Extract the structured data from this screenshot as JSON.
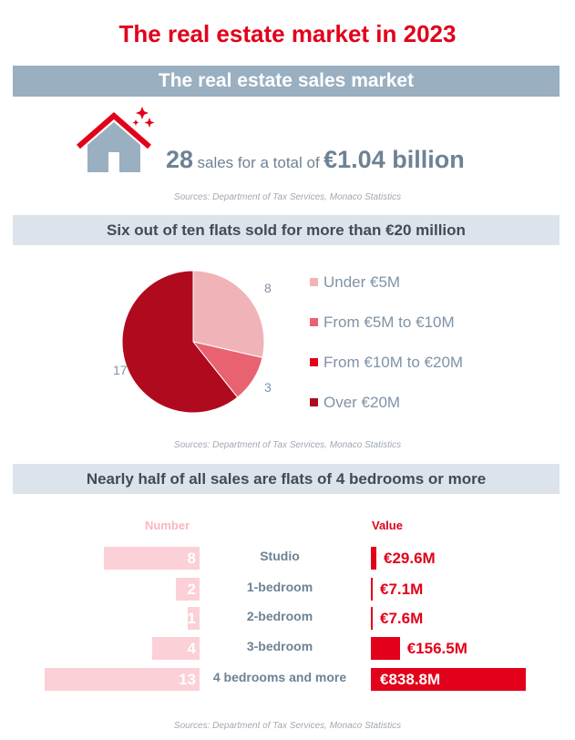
{
  "title": "The real estate market in 2023",
  "section1": {
    "heading": "The real estate sales market",
    "sales_count": "28",
    "sales_text": "sales for a total of",
    "total_value": "€1.04 billion",
    "source": "Sources: Department of Tax Services, Monaco Statistics"
  },
  "section2": {
    "heading": "Six out of ten flats sold for more than €20 million",
    "source": "Sources: Department of Tax Services, Monaco Statistics"
  },
  "section3": {
    "heading": "Nearly half of all sales are flats of 4 bedrooms or more",
    "number_header": "Number",
    "value_header": "Value",
    "source": "Sources: Department of Tax Services, Monaco Statistics"
  },
  "colors": {
    "accent": "#e2001a",
    "band_dark": "#9aafc0",
    "band_light": "#dde3ea",
    "text_blue": "#6e8295",
    "number_bar": "#fbd0d6"
  },
  "icons": {
    "house": "house-icon",
    "sparkle": "sparkle-icon"
  },
  "chart_data": [
    {
      "type": "pie",
      "categories": [
        "Under €5M",
        "From €5M to €10M",
        "From €10M to €20M",
        "Over €20M"
      ],
      "values": [
        8,
        3,
        0,
        17
      ],
      "labels": [
        "8",
        "3",
        "",
        "17"
      ],
      "colors": [
        "#f0b3b8",
        "#e8636f",
        "#e2001a",
        "#b00a1f"
      ],
      "legend": "right"
    },
    {
      "type": "bar",
      "orientation": "horizontal",
      "categories": [
        "Studio",
        "1-bedroom",
        "2-bedroom",
        "3-bedroom",
        "4 bedrooms and more"
      ],
      "series": [
        {
          "name": "Number",
          "values": [
            8,
            2,
            1,
            4,
            13
          ],
          "labels": [
            "8",
            "2",
            "1",
            "4",
            "13"
          ]
        },
        {
          "name": "Value",
          "values": [
            29.6,
            7.1,
            7.6,
            156.5,
            838.8
          ],
          "labels": [
            "€29.6M",
            "€7.1M",
            "€7.6M",
            "€156.5M",
            "€838.8M"
          ]
        }
      ]
    }
  ]
}
